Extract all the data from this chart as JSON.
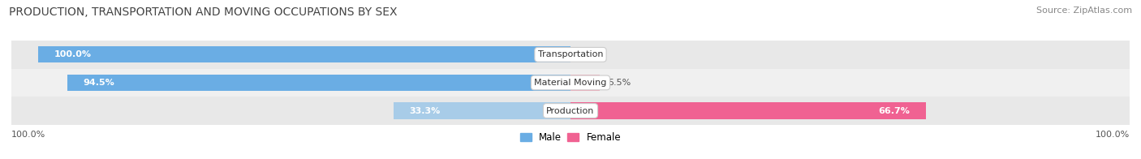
{
  "title": "PRODUCTION, TRANSPORTATION AND MOVING OCCUPATIONS BY SEX",
  "source": "Source: ZipAtlas.com",
  "categories": [
    "Transportation",
    "Material Moving",
    "Production"
  ],
  "male_values": [
    100.0,
    94.5,
    33.3
  ],
  "female_values": [
    0.0,
    5.5,
    66.7
  ],
  "male_color_strong": "#6aade4",
  "male_color_light": "#a8cce8",
  "female_color_strong": "#f06292",
  "female_color_light": "#f4a7b9",
  "row_colors": [
    "#ebebeb",
    "#f7f7f7",
    "#ebebeb"
  ],
  "title_fontsize": 10,
  "source_fontsize": 8,
  "label_fontsize": 8,
  "category_fontsize": 8,
  "legend_fontsize": 8.5,
  "bar_height": 0.58,
  "figsize": [
    14.06,
    1.96
  ],
  "dpi": 100,
  "xlim_left": -105,
  "xlim_right": 105
}
